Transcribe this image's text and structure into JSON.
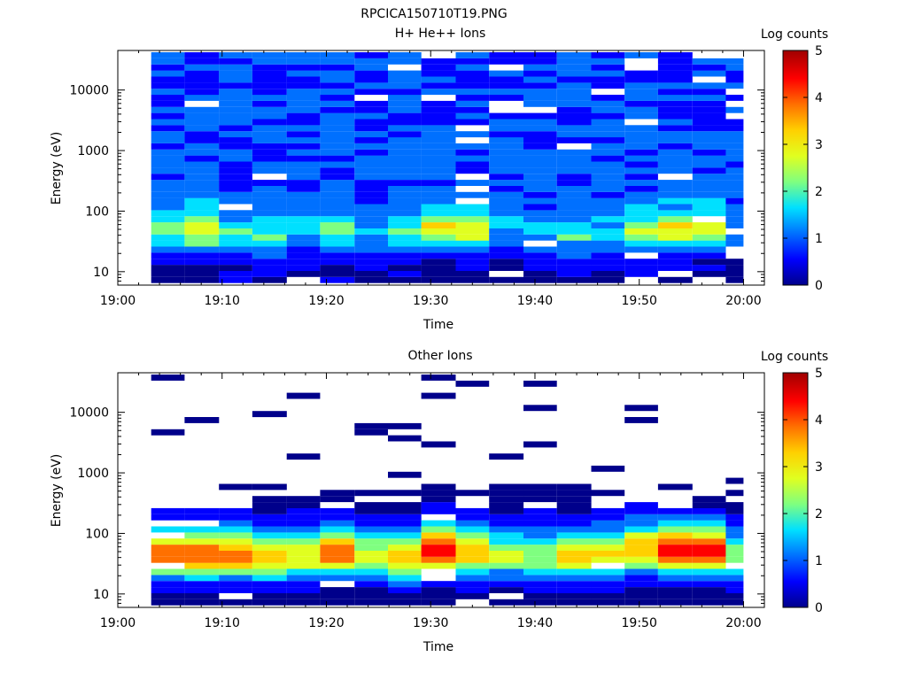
{
  "figure_title": "RPCICA150710T19.PNG",
  "colors": {
    "background": "#ffffff",
    "axes": "#000000",
    "colormap": [
      "#00008b",
      "#0000ff",
      "#0070ff",
      "#00e0ff",
      "#7fff80",
      "#e0ff20",
      "#ffd000",
      "#ff7000",
      "#ff0000",
      "#a00000"
    ]
  },
  "chart_data": [
    {
      "type": "heatmap",
      "title": "H+ He++ Ions",
      "xlabel": "Time",
      "ylabel": "Energy (eV)",
      "x_ticks": [
        "19:00",
        "19:10",
        "19:20",
        "19:30",
        "19:40",
        "19:50",
        "20:00"
      ],
      "xlim_minutes": [
        0,
        62
      ],
      "y_scale": "log",
      "y_ticks": [
        "10",
        "100",
        "1000",
        "10000"
      ],
      "ylim": [
        6,
        45000
      ],
      "data_time_range_minutes": [
        3,
        60
      ],
      "colorbar": {
        "label": "Log counts",
        "ticks": [
          "0",
          "1",
          "2",
          "3",
          "4",
          "5"
        ],
        "range": [
          0,
          5
        ]
      },
      "column_summary": {
        "time_start_minutes": [
          3.2,
          6.4,
          9.7,
          12.9,
          16.2,
          19.4,
          22.7,
          25.9,
          29.1,
          32.4,
          35.6,
          38.9,
          42.1,
          45.4,
          48.6,
          51.8,
          55.1,
          58.3
        ],
        "peak_log_counts": [
          1.8,
          2.6,
          1.6,
          1.4,
          1.2,
          2.0,
          1.0,
          1.5,
          2.8,
          2.8,
          1.1,
          1.0,
          1.2,
          1.3,
          2.4,
          2.7,
          2.7,
          0.9
        ],
        "peak_energy_eV": [
          48,
          48,
          40,
          35,
          48,
          48,
          40,
          40,
          52,
          52,
          48,
          40,
          35,
          40,
          48,
          52,
          52,
          40
        ]
      },
      "grid": false,
      "legend": "colorbar-right"
    },
    {
      "type": "heatmap",
      "title": "Other Ions",
      "xlabel": "Time",
      "ylabel": "Energy (eV)",
      "x_ticks": [
        "19:00",
        "19:10",
        "19:20",
        "19:30",
        "19:40",
        "19:50",
        "20:00"
      ],
      "xlim_minutes": [
        0,
        62
      ],
      "y_scale": "log",
      "y_ticks": [
        "10",
        "100",
        "1000",
        "10000"
      ],
      "ylim": [
        6,
        45000
      ],
      "data_time_range_minutes": [
        3,
        60
      ],
      "colorbar": {
        "label": "Log counts",
        "ticks": [
          "0",
          "1",
          "2",
          "3",
          "4",
          "5"
        ],
        "range": [
          0,
          5
        ]
      },
      "column_summary": {
        "time_start_minutes": [
          3.2,
          6.4,
          9.7,
          12.9,
          16.2,
          19.4,
          22.7,
          25.9,
          29.1,
          32.4,
          35.6,
          38.9,
          42.1,
          45.4,
          48.6,
          51.8,
          55.1,
          58.3
        ],
        "peak_log_counts": [
          4.0,
          3.9,
          3.7,
          3.2,
          3.0,
          3.8,
          2.6,
          3.3,
          4.5,
          3.4,
          2.5,
          2.3,
          3.2,
          3.0,
          3.4,
          4.6,
          4.5,
          2.3
        ],
        "peak_energy_eV": [
          42,
          42,
          42,
          38,
          42,
          45,
          40,
          38,
          50,
          45,
          42,
          40,
          40,
          42,
          52,
          50,
          48,
          40
        ]
      },
      "grid": false,
      "legend": "colorbar-right"
    }
  ]
}
